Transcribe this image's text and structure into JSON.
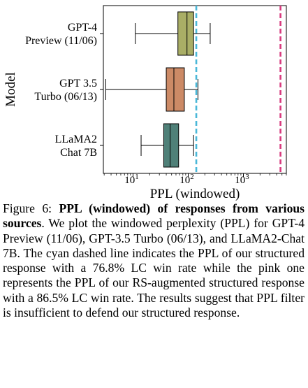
{
  "chart_data": {
    "type": "boxplot",
    "orientation": "horizontal",
    "xscale": "log",
    "xlim": [
      2.9,
      6000
    ],
    "xlabel": "PPL (windowed)",
    "ylabel": "Model",
    "xticks": [
      {
        "value": 10,
        "base": "10",
        "exp": "1"
      },
      {
        "value": 100,
        "base": "10",
        "exp": "2"
      },
      {
        "value": 1000,
        "base": "10",
        "exp": "3"
      }
    ],
    "series": [
      {
        "name": "GPT-4 Preview (11/06)",
        "label_lines": [
          "GPT-4",
          "Preview (11/06)"
        ],
        "color": "#a9ae66",
        "whisker_low": 11,
        "q1": 65,
        "median": 95,
        "q3": 125,
        "whisker_high": 250
      },
      {
        "name": "GPT 3.5 Turbo (06/13)",
        "label_lines": [
          "GPT 3.5",
          "Turbo (06/13)"
        ],
        "color": "#cc8a66",
        "whisker_low": 3.2,
        "q1": 40,
        "median": 55,
        "q3": 85,
        "whisker_high": 150
      },
      {
        "name": "LLaMA2 Chat 7B",
        "label_lines": [
          "LLaMA2",
          "Chat 7B"
        ],
        "color": "#4f8078",
        "whisker_low": 14,
        "q1": 36,
        "median": 47,
        "q3": 67,
        "whisker_high": 125
      }
    ],
    "reference_lines": [
      {
        "name": "structured response (76.8% LC win rate)",
        "value": 140,
        "color": "#4ab8d8",
        "style": "dashed"
      },
      {
        "name": "RS-augmented structured response (86.5% LC win rate)",
        "value": 4700,
        "color": "#d83a7e",
        "style": "dashed"
      }
    ]
  },
  "caption": {
    "prefix": "Figure 6: ",
    "bold": "PPL (windowed) of responses from various sources",
    "body": ". We plot the windowed perplexity (PPL) for GPT-4 Preview (11/06), GPT-3.5 Turbo (06/13), and LLaMA2-Chat 7B. The cyan dashed line indicates the PPL of our structured response with a 76.8% LC win rate while the pink one represents the PPL of our RS-augmented structured response with a 86.5% LC win rate. The results suggest that PPL filter is insufficient to defend our structured response."
  }
}
